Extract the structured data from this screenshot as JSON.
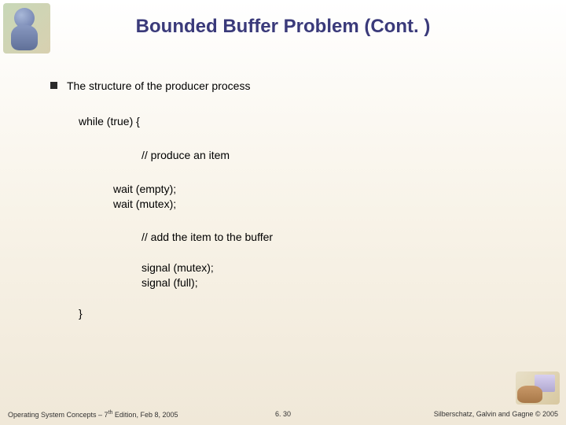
{
  "title": "Bounded Buffer Problem (Cont. )",
  "bullet_text": "The structure of the producer process",
  "code": {
    "while_line": "while (true)  {",
    "comment1": "//   produce an item",
    "wait_empty": "wait (empty);",
    "wait_mutex": "wait (mutex);",
    "comment2": "//  add the item to the  buffer",
    "signal_mutex": "signal (mutex);",
    "signal_full": "signal (full);",
    "close_brace": "}"
  },
  "footer": {
    "left_prefix": "Operating System Concepts – 7",
    "left_sup": "th",
    "left_suffix": " Edition, Feb 8, 2005",
    "center": "6. 30",
    "right": "Silberschatz, Galvin and Gagne © 2005"
  },
  "colors": {
    "title_color": "#3a3a7a",
    "text_color": "#000000",
    "bg_top": "#ffffff",
    "bg_bottom": "#f0e8d8"
  }
}
